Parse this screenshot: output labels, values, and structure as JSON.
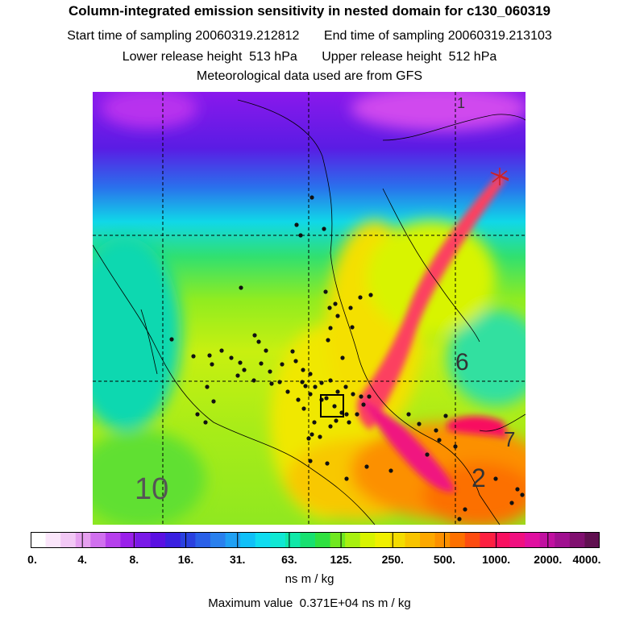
{
  "title": "Column-integrated emission sensitivity in nested domain for c130_060319",
  "sampling": {
    "start_label": "Start time of sampling",
    "start_value": "20060319.212812",
    "end_label": "End time of sampling",
    "end_value": "20060319.213103"
  },
  "release": {
    "lower_label": "Lower release height",
    "lower_value": "513 hPa",
    "upper_label": "Upper release height",
    "upper_value": "512 hPa"
  },
  "met_note": "Meteorological data used are from GFS",
  "map": {
    "labels": [
      "1",
      "6",
      "7",
      "2",
      "10"
    ],
    "point_symbols": [
      "star-marker",
      "box-marker"
    ]
  },
  "colorbar": {
    "ticks": [
      "0.",
      "4.",
      "8.",
      "16.",
      "31.",
      "63.",
      "125.",
      "250.",
      "500.",
      "1000.",
      "2000.",
      "4000."
    ],
    "colors": [
      "#ffffff",
      "#fbe6fb",
      "#f2c8f5",
      "#e6a0f0",
      "#d070ee",
      "#b640ec",
      "#9a20ea",
      "#7a1ae8",
      "#5a10e2",
      "#3a20e0",
      "#2a40e0",
      "#2a60e8",
      "#2a80ee",
      "#20a0f4",
      "#10c0f8",
      "#10dcf0",
      "#10e8d4",
      "#10e8a8",
      "#18e070",
      "#30e040",
      "#70e820",
      "#a8f010",
      "#d8f400",
      "#f0f000",
      "#f4dc00",
      "#f8c400",
      "#fca800",
      "#fc9000",
      "#fc7000",
      "#fc4c10",
      "#fc2040",
      "#f81060",
      "#f01080",
      "#e010a0",
      "#c010a0",
      "#a01090",
      "#801070",
      "#601050"
    ],
    "unit": "ns m / kg"
  },
  "max_value_label": "Maximum value",
  "max_value": "0.371E+04 ns m / kg"
}
